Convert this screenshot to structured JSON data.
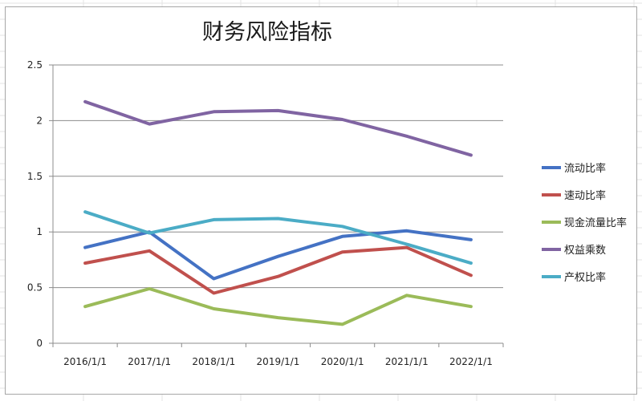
{
  "chart_data": {
    "type": "line",
    "title": "财务风险指标",
    "categories": [
      "2016/1/1",
      "2017/1/1",
      "2018/1/1",
      "2019/1/1",
      "2020/1/1",
      "2021/1/1",
      "2022/1/1"
    ],
    "ylim": [
      0,
      2.5
    ],
    "yticks": [
      "0",
      "0.5",
      "1",
      "1.5",
      "2",
      "2.5"
    ],
    "grid": true,
    "legend_position": "right",
    "series": [
      {
        "name": "流动比率",
        "color": "#4472c4",
        "values": [
          0.86,
          1.0,
          0.58,
          0.78,
          0.96,
          1.01,
          0.93
        ]
      },
      {
        "name": "速动比率",
        "color": "#c0504d",
        "values": [
          0.72,
          0.83,
          0.45,
          0.6,
          0.82,
          0.86,
          0.61
        ]
      },
      {
        "name": "现金流量比率",
        "color": "#9bbb59",
        "values": [
          0.33,
          0.49,
          0.31,
          0.23,
          0.17,
          0.43,
          0.33
        ]
      },
      {
        "name": "权益乘数",
        "color": "#8064a2",
        "values": [
          2.17,
          1.97,
          2.08,
          2.09,
          2.01,
          1.86,
          1.69
        ]
      },
      {
        "name": "产权比率",
        "color": "#4bacc6",
        "values": [
          1.18,
          0.99,
          1.11,
          1.12,
          1.05,
          0.89,
          0.72
        ]
      }
    ]
  }
}
